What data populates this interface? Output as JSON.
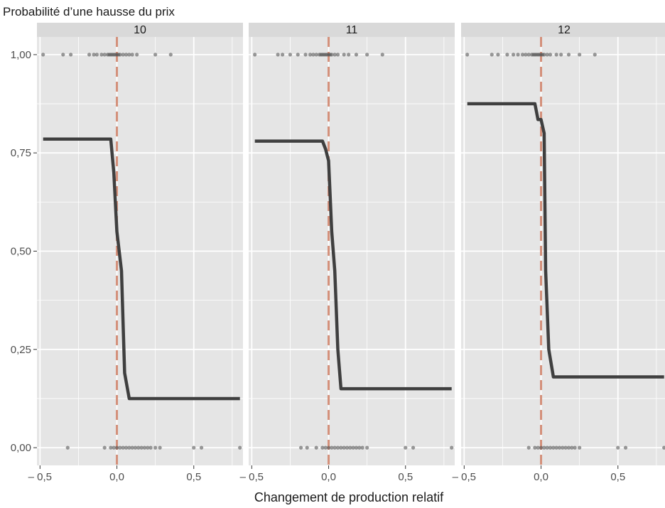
{
  "chart_data": {
    "type": "line",
    "ylabel": "Probabilité d’une hausse du prix",
    "xlabel": "Changement de production relatif",
    "xlim": [
      -0.52,
      0.82
    ],
    "ylim": [
      -0.045,
      1.045
    ],
    "x_ticks": [
      -0.5,
      0.0,
      0.5
    ],
    "x_tick_labels": [
      "– 0,5",
      "0,0",
      "0,5"
    ],
    "y_ticks": [
      0.0,
      0.25,
      0.5,
      0.75,
      1.0
    ],
    "y_tick_labels": [
      "0,00",
      "0,25",
      "0,50",
      "0,75",
      "1,00"
    ],
    "grid": true,
    "colors": {
      "panel_bg": "#e5e5e5",
      "strip_bg": "#d9d9d9",
      "grid": "#ffffff",
      "line": "#3f3f3f",
      "points": "#555555",
      "reference_line": "#d4907a"
    },
    "reference_x": 0.0,
    "panels": [
      {
        "label": "10",
        "curve": [
          [
            -0.48,
            0.785
          ],
          [
            -0.04,
            0.785
          ],
          [
            -0.02,
            0.7
          ],
          [
            0.0,
            0.55
          ],
          [
            0.03,
            0.45
          ],
          [
            0.05,
            0.19
          ],
          [
            0.08,
            0.125
          ],
          [
            0.8,
            0.125
          ]
        ],
        "points_top": [
          -0.48,
          -0.35,
          -0.3,
          -0.18,
          -0.15,
          -0.13,
          -0.1,
          -0.08,
          -0.06,
          -0.05,
          -0.04,
          -0.03,
          -0.02,
          -0.01,
          0.0,
          0.01,
          0.02,
          0.04,
          0.06,
          0.08,
          0.1,
          0.13,
          0.25,
          0.35
        ],
        "points_bottom": [
          -0.32,
          -0.08,
          -0.04,
          -0.02,
          0.0,
          0.02,
          0.04,
          0.06,
          0.08,
          0.1,
          0.12,
          0.14,
          0.16,
          0.18,
          0.2,
          0.22,
          0.25,
          0.28,
          0.5,
          0.55,
          0.8
        ]
      },
      {
        "label": "11",
        "curve": [
          [
            -0.48,
            0.78
          ],
          [
            -0.04,
            0.78
          ],
          [
            -0.02,
            0.76
          ],
          [
            0.0,
            0.73
          ],
          [
            0.02,
            0.55
          ],
          [
            0.04,
            0.45
          ],
          [
            0.06,
            0.25
          ],
          [
            0.08,
            0.15
          ],
          [
            0.8,
            0.15
          ]
        ],
        "points_top": [
          -0.48,
          -0.33,
          -0.3,
          -0.25,
          -0.2,
          -0.15,
          -0.12,
          -0.1,
          -0.08,
          -0.06,
          -0.05,
          -0.04,
          -0.03,
          -0.02,
          -0.01,
          0.0,
          0.01,
          0.02,
          0.04,
          0.06,
          0.1,
          0.13,
          0.18,
          0.25,
          0.35
        ],
        "points_bottom": [
          -0.18,
          -0.14,
          -0.08,
          -0.04,
          -0.02,
          0.0,
          0.02,
          0.04,
          0.06,
          0.08,
          0.1,
          0.12,
          0.14,
          0.16,
          0.18,
          0.2,
          0.22,
          0.25,
          0.5,
          0.55,
          0.8
        ]
      },
      {
        "label": "12",
        "curve": [
          [
            -0.48,
            0.875
          ],
          [
            -0.04,
            0.875
          ],
          [
            -0.02,
            0.835
          ],
          [
            0.0,
            0.835
          ],
          [
            0.02,
            0.8
          ],
          [
            0.03,
            0.45
          ],
          [
            0.05,
            0.25
          ],
          [
            0.08,
            0.18
          ],
          [
            0.8,
            0.18
          ]
        ],
        "points_top": [
          -0.48,
          -0.32,
          -0.28,
          -0.22,
          -0.18,
          -0.15,
          -0.12,
          -0.1,
          -0.08,
          -0.06,
          -0.05,
          -0.04,
          -0.03,
          -0.02,
          -0.01,
          0.0,
          0.01,
          0.02,
          0.04,
          0.06,
          0.1,
          0.13,
          0.18,
          0.25,
          0.35
        ],
        "points_bottom": [
          -0.08,
          -0.04,
          -0.02,
          0.0,
          0.02,
          0.04,
          0.06,
          0.08,
          0.1,
          0.12,
          0.14,
          0.16,
          0.18,
          0.2,
          0.22,
          0.25,
          0.5,
          0.55,
          0.8
        ]
      }
    ]
  }
}
